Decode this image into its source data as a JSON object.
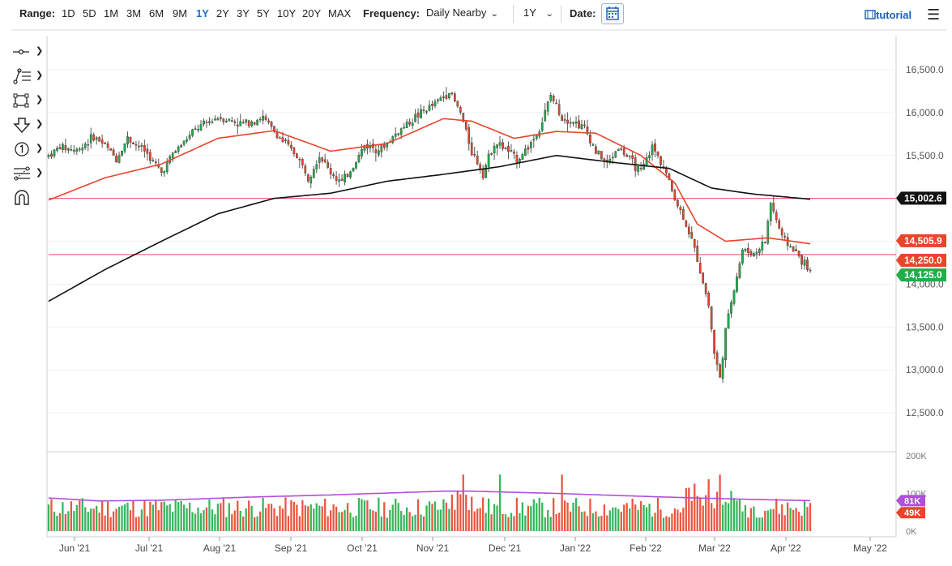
{
  "toolbar": {
    "range_label": "Range:",
    "ranges": [
      "1D",
      "5D",
      "1M",
      "3M",
      "6M",
      "9M",
      "1Y",
      "2Y",
      "3Y",
      "5Y",
      "10Y",
      "20Y",
      "MAX"
    ],
    "active_range": "1Y",
    "frequency_label": "Frequency:",
    "frequency_value": "Daily Nearby",
    "period_value": "1Y",
    "date_label": "Date:",
    "tutorial_label": "tutorial"
  },
  "tools": [
    {
      "icon": "crosshair-line-icon"
    },
    {
      "icon": "trend-lines-icon"
    },
    {
      "icon": "rectangle-icon"
    },
    {
      "icon": "down-arrow-icon"
    },
    {
      "icon": "annotation-number-icon"
    },
    {
      "icon": "fibonacci-icon"
    },
    {
      "icon": "magnet-icon"
    }
  ],
  "chart_data": {
    "type": "candlestick",
    "x_ticks": [
      "Jun '21",
      "Jul '21",
      "Aug '21",
      "Sep '21",
      "Oct '21",
      "Nov '21",
      "Dec '21",
      "Jan '22",
      "Feb '22",
      "Mar '22",
      "Apr '22",
      "May '22"
    ],
    "y_ticks": [
      "16,500.0",
      "16,000.0",
      "15,500.0",
      "15,000.0",
      "14,500.0",
      "14,000.0",
      "13,500.0",
      "13,000.0",
      "12,500.0"
    ],
    "ylim": [
      12400,
      16700
    ],
    "hlines": [
      15000,
      14345
    ],
    "price_labels": [
      {
        "text": "15,002.6",
        "value": 15002.6,
        "bg": "#111111"
      },
      {
        "text": "14,505.9",
        "value": 14505.9,
        "bg": "#e8452c"
      },
      {
        "text": "14,250.0",
        "value": 14250,
        "bg": "#e8452c"
      },
      {
        "text": "14,125.0",
        "value": 14125,
        "bg": "#1fae4a"
      }
    ],
    "anchors": [
      [
        0,
        15500
      ],
      [
        4,
        15600
      ],
      [
        10,
        15560
      ],
      [
        16,
        15720
      ],
      [
        20,
        15620
      ],
      [
        24,
        15460
      ],
      [
        28,
        15700
      ],
      [
        34,
        15560
      ],
      [
        40,
        15300
      ],
      [
        44,
        15520
      ],
      [
        52,
        15800
      ],
      [
        60,
        15950
      ],
      [
        68,
        15870
      ],
      [
        76,
        15940
      ],
      [
        82,
        15700
      ],
      [
        88,
        15500
      ],
      [
        92,
        15250
      ],
      [
        96,
        15500
      ],
      [
        100,
        15300
      ],
      [
        104,
        15180
      ],
      [
        108,
        15380
      ],
      [
        112,
        15620
      ],
      [
        118,
        15580
      ],
      [
        124,
        15780
      ],
      [
        130,
        15950
      ],
      [
        136,
        16080
      ],
      [
        142,
        16250
      ],
      [
        146,
        16000
      ],
      [
        150,
        15550
      ],
      [
        154,
        15300
      ],
      [
        158,
        15650
      ],
      [
        162,
        15580
      ],
      [
        166,
        15450
      ],
      [
        170,
        15600
      ],
      [
        174,
        15800
      ],
      [
        178,
        16200
      ],
      [
        182,
        15950
      ],
      [
        186,
        15900
      ],
      [
        190,
        15820
      ],
      [
        194,
        15550
      ],
      [
        198,
        15400
      ],
      [
        202,
        15600
      ],
      [
        206,
        15450
      ],
      [
        210,
        15300
      ],
      [
        214,
        15600
      ],
      [
        218,
        15380
      ],
      [
        222,
        15000
      ],
      [
        226,
        14700
      ],
      [
        230,
        14300
      ],
      [
        234,
        13750
      ],
      [
        236,
        13200
      ],
      [
        238,
        12900
      ],
      [
        240,
        13450
      ],
      [
        242,
        13800
      ],
      [
        246,
        14400
      ],
      [
        250,
        14350
      ],
      [
        254,
        14500
      ],
      [
        256,
        14950
      ],
      [
        260,
        14550
      ],
      [
        264,
        14400
      ],
      [
        268,
        14240
      ],
      [
        270,
        14130
      ]
    ],
    "ema_fast": [
      [
        0,
        14980
      ],
      [
        20,
        15240
      ],
      [
        40,
        15400
      ],
      [
        60,
        15700
      ],
      [
        80,
        15790
      ],
      [
        100,
        15550
      ],
      [
        120,
        15640
      ],
      [
        140,
        15930
      ],
      [
        150,
        15900
      ],
      [
        165,
        15700
      ],
      [
        180,
        15780
      ],
      [
        194,
        15760
      ],
      [
        210,
        15500
      ],
      [
        222,
        15180
      ],
      [
        230,
        14700
      ],
      [
        240,
        14500
      ],
      [
        255,
        14540
      ],
      [
        270,
        14470
      ]
    ],
    "sma_slow": [
      [
        0,
        13800
      ],
      [
        20,
        14170
      ],
      [
        40,
        14500
      ],
      [
        60,
        14820
      ],
      [
        80,
        15000
      ],
      [
        100,
        15060
      ],
      [
        120,
        15200
      ],
      [
        140,
        15280
      ],
      [
        160,
        15370
      ],
      [
        180,
        15500
      ],
      [
        200,
        15420
      ],
      [
        220,
        15350
      ],
      [
        235,
        15120
      ],
      [
        250,
        15050
      ],
      [
        270,
        14990
      ]
    ],
    "volume": {
      "y_ticks": [
        "200K",
        "100K",
        "0K"
      ],
      "labels": [
        {
          "text": "81K",
          "value": 81000,
          "bg": "#b04fd9"
        },
        {
          "text": "49K",
          "value": 49000,
          "bg": "#e8452c"
        }
      ],
      "avg_line": [
        [
          0,
          88000
        ],
        [
          18,
          80000
        ],
        [
          40,
          82000
        ],
        [
          70,
          90000
        ],
        [
          100,
          96000
        ],
        [
          140,
          106000
        ],
        [
          150,
          106000
        ],
        [
          180,
          100000
        ],
        [
          220,
          90000
        ],
        [
          250,
          84000
        ],
        [
          270,
          81000
        ]
      ]
    }
  }
}
